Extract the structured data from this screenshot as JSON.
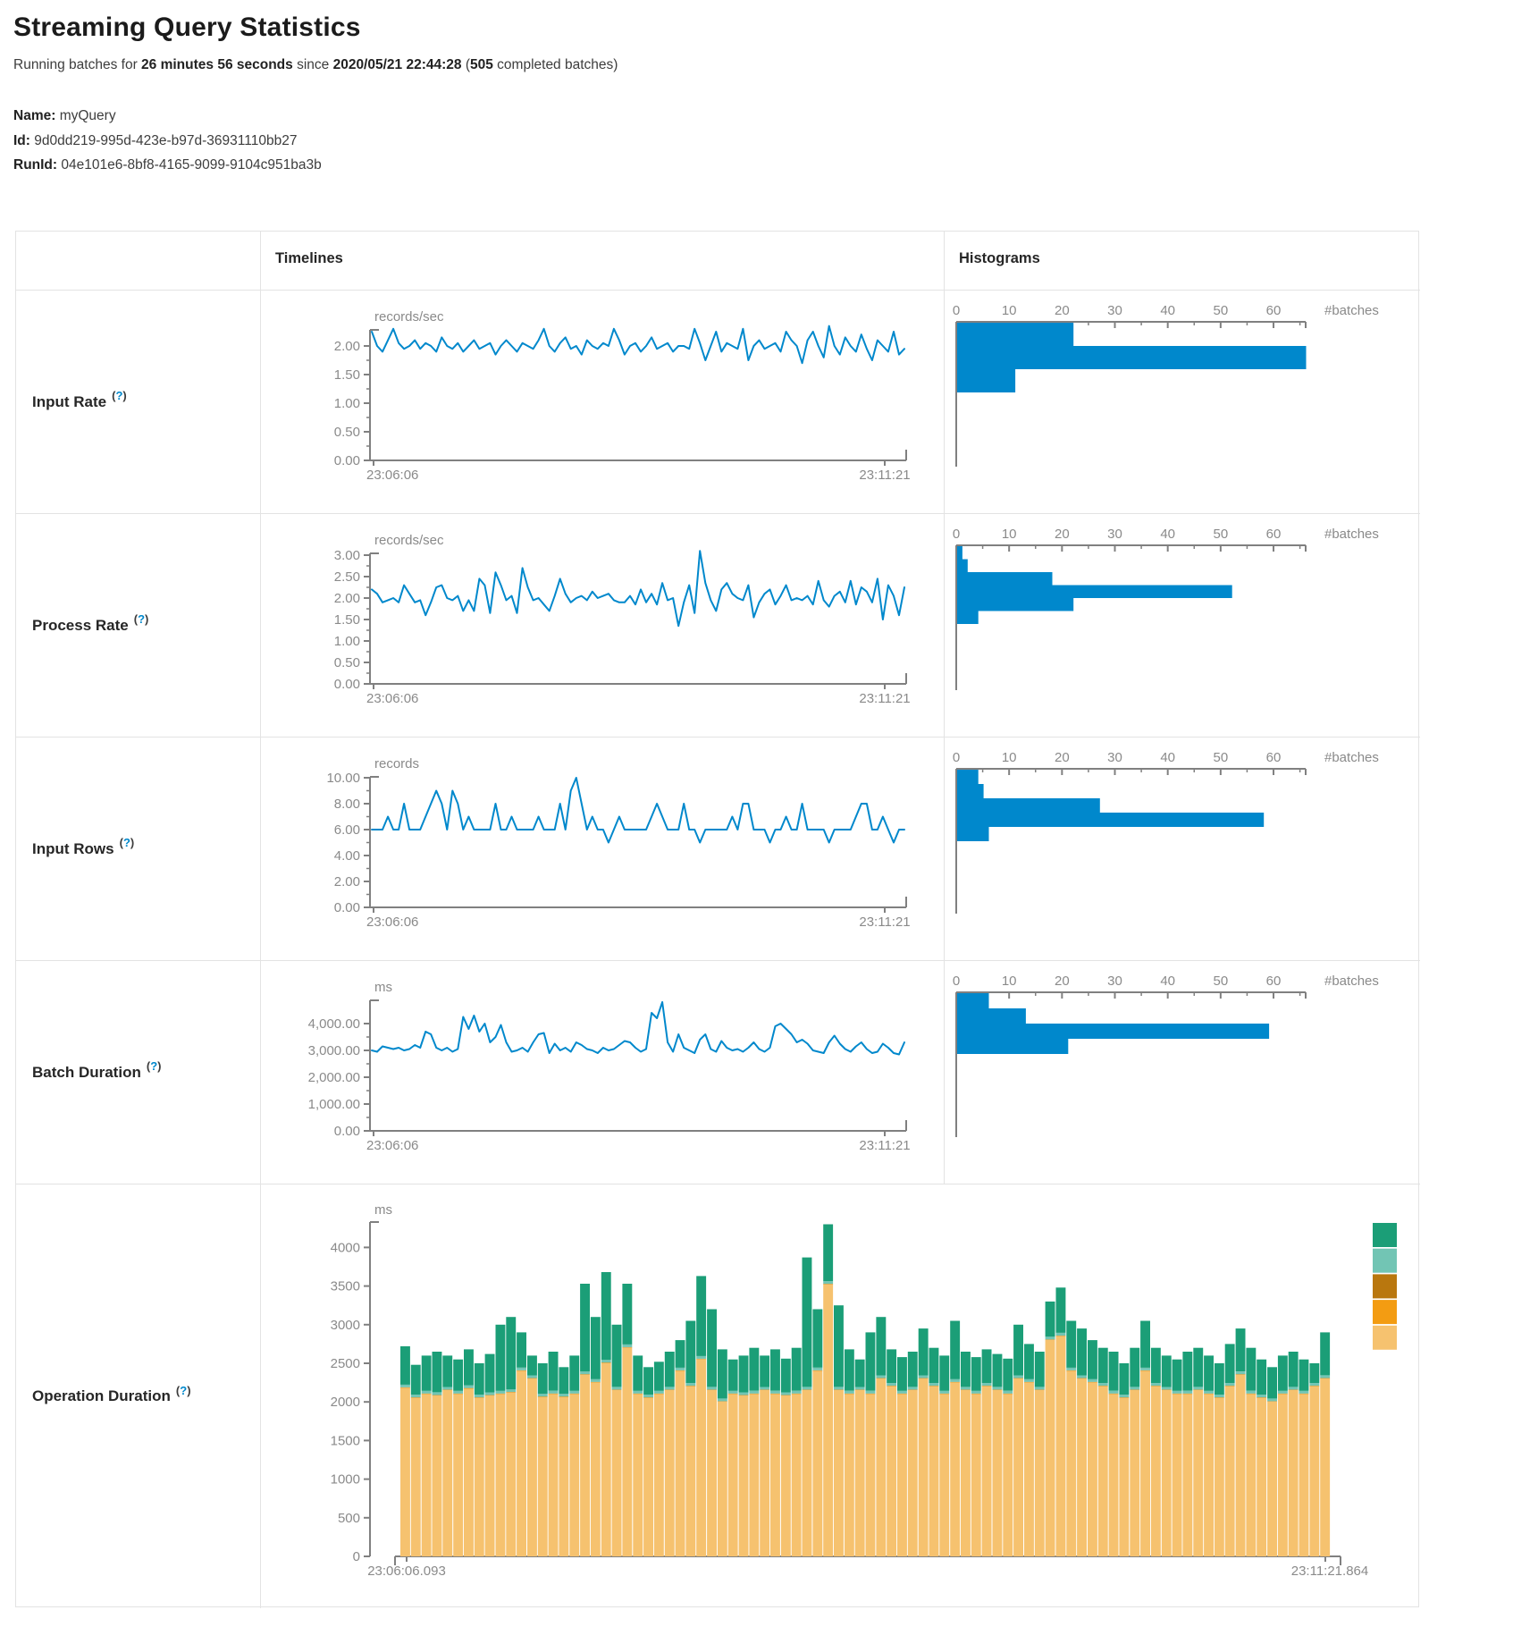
{
  "page": {
    "title": "Streaming Query Statistics",
    "status": {
      "prefix": "Running batches for ",
      "duration": "26 minutes 56 seconds",
      "mid": " since ",
      "timestamp": "2020/05/21 22:44:28",
      "open": " (",
      "batches": "505",
      "suffix": " completed batches)"
    },
    "meta": {
      "name_label": "Name:",
      "name_value": "myQuery",
      "id_label": "Id:",
      "id_value": "9d0dd219-995d-423e-b97d-36931110bb27",
      "runid_label": "RunId:",
      "runid_value": "04e101e6-8bf8-4165-9099-9104c951ba3b"
    }
  },
  "colors": {
    "accent": "#0088cc",
    "axis": "#808080",
    "tick_text": "#8a8a8a",
    "border": "#e3e3e3"
  },
  "table": {
    "headers": {
      "timelines": "Timelines",
      "histograms": "Histograms"
    },
    "help": {
      "open": "(",
      "q": "?",
      "close": ")"
    },
    "rows": [
      {
        "label": "Input Rate"
      },
      {
        "label": "Process Rate"
      },
      {
        "label": "Input Rows"
      },
      {
        "label": "Batch Duration"
      },
      {
        "label": "Operation Duration"
      }
    ]
  },
  "chart_data": [
    {
      "id": "input-rate-timeline",
      "type": "line",
      "title": "Input Rate",
      "unit": "records/sec",
      "x_start": "23:06:06",
      "x_end": "23:11:21",
      "y_ticks": [
        "2.00",
        "1.50",
        "1.00",
        "0.50",
        "0.00"
      ],
      "ylim": [
        0,
        2.28
      ],
      "values": [
        2.25,
        2.0,
        1.9,
        2.1,
        2.3,
        2.05,
        1.95,
        2.0,
        2.1,
        1.95,
        2.05,
        2.0,
        1.9,
        2.15,
        2.0,
        1.95,
        2.05,
        1.9,
        2.0,
        2.1,
        1.95,
        2.0,
        2.05,
        1.85,
        2.0,
        2.1,
        2.0,
        1.9,
        2.05,
        2.0,
        1.95,
        2.1,
        2.3,
        2.0,
        1.9,
        2.05,
        2.15,
        1.95,
        2.0,
        1.85,
        2.1,
        2.0,
        1.95,
        2.05,
        2.0,
        2.3,
        2.1,
        1.85,
        2.0,
        2.05,
        1.9,
        2.0,
        2.15,
        1.95,
        2.0,
        2.05,
        1.9,
        2.0,
        2.0,
        1.95,
        2.3,
        2.05,
        1.75,
        2.0,
        2.25,
        1.9,
        2.05,
        2.0,
        1.95,
        2.3,
        1.75,
        2.0,
        2.1,
        1.95,
        2.0,
        2.05,
        1.9,
        2.25,
        2.1,
        2.0,
        1.7,
        2.1,
        2.25,
        2.0,
        1.8,
        2.35,
        2.0,
        1.85,
        2.15,
        2.0,
        1.9,
        2.2,
        1.95,
        1.75,
        2.1,
        2.0,
        1.9,
        2.25,
        1.85,
        1.95
      ]
    },
    {
      "id": "input-rate-histogram",
      "type": "bar-horizontal",
      "xlabel": "#batches",
      "x_ticks": [
        "0",
        "10",
        "20",
        "30",
        "40",
        "50",
        "60"
      ],
      "xlim": [
        0,
        66
      ],
      "values": [
        22,
        66,
        11
      ]
    },
    {
      "id": "process-rate-timeline",
      "type": "line",
      "title": "Process Rate",
      "unit": "records/sec",
      "x_start": "23:06:06",
      "x_end": "23:11:21",
      "y_ticks": [
        "3.00",
        "2.50",
        "2.00",
        "1.50",
        "1.00",
        "0.50",
        "0.00"
      ],
      "ylim": [
        0,
        3.05
      ],
      "values": [
        2.2,
        2.1,
        1.9,
        1.95,
        2.0,
        1.9,
        2.3,
        2.1,
        1.9,
        1.95,
        1.6,
        1.9,
        2.25,
        2.3,
        2.0,
        1.95,
        2.05,
        1.7,
        1.95,
        1.7,
        2.45,
        2.3,
        1.65,
        2.6,
        2.3,
        1.95,
        2.05,
        1.65,
        2.7,
        2.25,
        1.95,
        2.0,
        1.85,
        1.7,
        2.05,
        2.45,
        2.1,
        1.9,
        2.0,
        2.05,
        1.95,
        2.15,
        2.0,
        2.05,
        2.1,
        1.95,
        1.9,
        1.9,
        2.05,
        1.85,
        2.2,
        1.9,
        2.1,
        1.85,
        2.35,
        1.95,
        2.0,
        1.35,
        1.9,
        2.3,
        1.65,
        3.1,
        2.35,
        1.95,
        1.7,
        2.2,
        2.35,
        2.1,
        2.0,
        1.95,
        2.3,
        1.55,
        1.9,
        2.1,
        2.2,
        1.85,
        2.05,
        2.3,
        1.95,
        2.0,
        1.95,
        2.05,
        1.85,
        2.4,
        1.95,
        1.8,
        2.05,
        2.15,
        1.9,
        2.4,
        1.85,
        2.25,
        2.15,
        1.9,
        2.45,
        1.5,
        2.3,
        2.05,
        1.6,
        2.25
      ]
    },
    {
      "id": "process-rate-histogram",
      "type": "bar-horizontal",
      "xlabel": "#batches",
      "x_ticks": [
        "0",
        "10",
        "20",
        "30",
        "40",
        "50",
        "60"
      ],
      "xlim": [
        0,
        66
      ],
      "values": [
        1,
        2,
        18,
        52,
        22,
        4
      ]
    },
    {
      "id": "input-rows-timeline",
      "type": "line",
      "title": "Input Rows",
      "unit": "records",
      "x_start": "23:06:06",
      "x_end": "23:11:21",
      "y_ticks": [
        "10.00",
        "8.00",
        "6.00",
        "4.00",
        "2.00",
        "0.00"
      ],
      "ylim": [
        0,
        10.2
      ],
      "values": [
        6,
        6,
        6,
        7,
        6,
        6,
        8,
        6,
        6,
        6,
        7,
        8,
        9,
        8,
        6,
        9,
        8,
        6,
        7,
        6,
        6,
        6,
        6,
        8,
        6,
        6,
        7,
        6,
        6,
        6,
        6,
        7,
        6,
        6,
        6,
        8,
        6,
        9,
        10,
        8,
        6,
        7,
        6,
        6,
        5,
        6,
        7,
        6,
        6,
        6,
        6,
        6,
        7,
        8,
        7,
        6,
        6,
        6,
        8,
        6,
        6,
        5,
        6,
        6,
        6,
        6,
        6,
        7,
        6,
        8,
        8,
        6,
        6,
        6,
        5,
        6,
        6,
        7,
        6,
        6,
        8,
        6,
        6,
        6,
        6,
        5,
        6,
        6,
        6,
        6,
        7,
        8,
        8,
        6,
        6,
        7,
        6,
        5,
        6,
        6
      ]
    },
    {
      "id": "input-rows-histogram",
      "type": "bar-horizontal",
      "xlabel": "#batches",
      "x_ticks": [
        "0",
        "10",
        "20",
        "30",
        "40",
        "50",
        "60"
      ],
      "xlim": [
        0,
        66
      ],
      "values": [
        4,
        5,
        27,
        58,
        6
      ]
    },
    {
      "id": "batch-duration-timeline",
      "type": "line",
      "title": "Batch Duration",
      "unit": "ms",
      "x_start": "23:06:06",
      "x_end": "23:11:21",
      "y_ticks": [
        "4,000.00",
        "3,000.00",
        "2,000.00",
        "1,000.00",
        "0.00"
      ],
      "ylim": [
        0,
        4870
      ],
      "values": [
        3000,
        2950,
        3150,
        3100,
        3050,
        3100,
        3000,
        3050,
        3200,
        3100,
        3700,
        3600,
        3100,
        3000,
        3100,
        2950,
        3050,
        4250,
        3800,
        4300,
        3700,
        4000,
        3300,
        3500,
        3950,
        3300,
        2950,
        3000,
        3100,
        2950,
        3300,
        3600,
        3650,
        2900,
        3250,
        3000,
        3100,
        2950,
        3300,
        3200,
        3050,
        3000,
        2900,
        3100,
        3000,
        3050,
        3200,
        3350,
        3300,
        3100,
        2950,
        3050,
        4400,
        4200,
        4800,
        3300,
        2950,
        3600,
        3100,
        3000,
        2900,
        3400,
        3600,
        3050,
        2950,
        3350,
        3100,
        3000,
        3050,
        2950,
        3100,
        3300,
        3050,
        2950,
        3100,
        3900,
        4000,
        3800,
        3600,
        3300,
        3400,
        3250,
        3000,
        2950,
        2900,
        3300,
        3550,
        3250,
        3050,
        2950,
        3150,
        3300,
        3050,
        2900,
        2950,
        3250,
        3100,
        2900,
        2850,
        3300
      ]
    },
    {
      "id": "batch-duration-histogram",
      "type": "bar-horizontal",
      "xlabel": "#batches",
      "x_ticks": [
        "0",
        "10",
        "20",
        "30",
        "40",
        "50",
        "60"
      ],
      "xlim": [
        0,
        66
      ],
      "values": [
        6,
        13,
        59,
        21
      ]
    },
    {
      "id": "operation-duration-stacked",
      "type": "stacked-bar",
      "title": "Operation Duration",
      "unit": "ms",
      "x_start": "23:06:06.093",
      "x_end": "23:11:21.864",
      "y_ticks": [
        "0",
        "500",
        "1000",
        "1500",
        "2000",
        "2500",
        "3000",
        "3500",
        "4000"
      ],
      "ylim": [
        0,
        4330
      ],
      "legend_position": "right",
      "series": [
        {
          "name": "segment-tan",
          "color": "#f6c26f",
          "values": [
            2180,
            2050,
            2100,
            2080,
            2150,
            2100,
            2170,
            2050,
            2080,
            2100,
            2120,
            2400,
            2300,
            2060,
            2100,
            2060,
            2100,
            2350,
            2250,
            2500,
            2150,
            2700,
            2100,
            2050,
            2100,
            2150,
            2400,
            2200,
            2550,
            2150,
            2000,
            2100,
            2080,
            2100,
            2150,
            2100,
            2080,
            2100,
            2150,
            2400,
            3520,
            2150,
            2100,
            2150,
            2100,
            2300,
            2200,
            2100,
            2150,
            2300,
            2200,
            2100,
            2250,
            2150,
            2100,
            2200,
            2150,
            2100,
            2300,
            2250,
            2150,
            2800,
            2850,
            2400,
            2300,
            2250,
            2200,
            2100,
            2050,
            2150,
            2400,
            2200,
            2150,
            2100,
            2100,
            2150,
            2100,
            2050,
            2200,
            2350,
            2100,
            2050,
            2000,
            2100,
            2150,
            2100,
            2200,
            2300
          ]
        },
        {
          "name": "segment-orange",
          "color": "#f39c12",
          "value_all": 6
        },
        {
          "name": "segment-dark-gold",
          "color": "#b9770e",
          "value_all": 3
        },
        {
          "name": "segment-light-teal",
          "color": "#72c5b4",
          "value_all": 35
        },
        {
          "name": "segment-teal",
          "color": "#1b9e77",
          "values": [
            496,
            386,
            456,
            526,
            406,
            406,
            466,
            406,
            496,
            856,
            936,
            456,
            256,
            396,
            506,
            346,
            456,
            1136,
            806,
            1136,
            806,
            786,
            456,
            356,
            376,
            456,
            356,
            806,
            1036,
            1006,
            636,
            406,
            476,
            556,
            406,
            536,
            436,
            556,
            1676,
            756,
            736,
            1056,
            536,
            356,
            756,
            756,
            436,
            436,
            456,
            606,
            456,
            456,
            756,
            456,
            436,
            436,
            426,
            416,
            656,
            456,
            456,
            456,
            586,
            606,
            606,
            506,
            456,
            506,
            406,
            506,
            606,
            456,
            406,
            406,
            506,
            506,
            456,
            406,
            506,
            556,
            556,
            456,
            406,
            456,
            456,
            406,
            256,
            556
          ]
        }
      ]
    }
  ]
}
